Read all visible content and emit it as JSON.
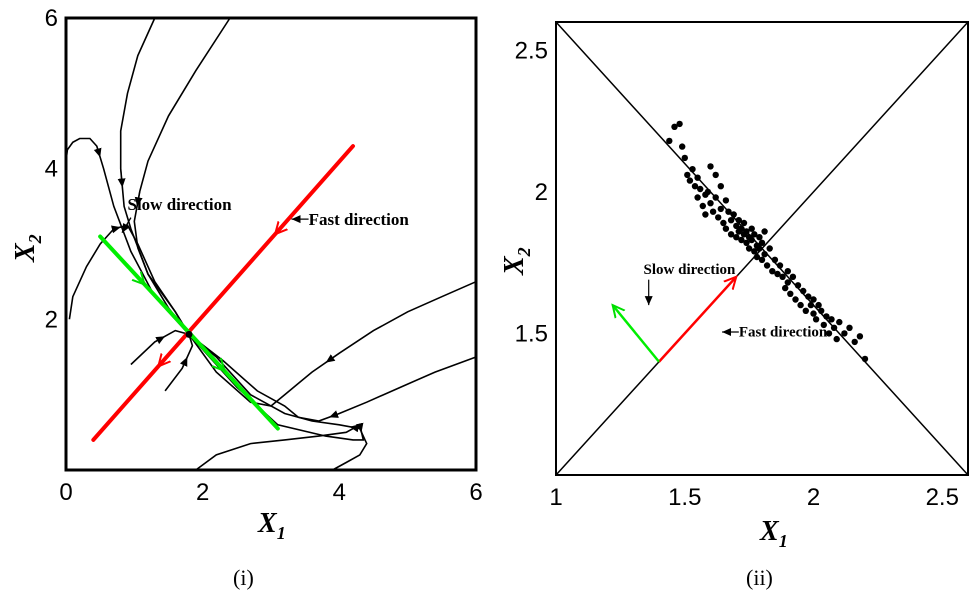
{
  "chart_data": [
    {
      "panel": "(i)",
      "type": "line",
      "caption": "(i)",
      "xlabel": "X",
      "xlabel_sub": "1",
      "ylabel": "X",
      "ylabel_sub": "2",
      "xlim": [
        0,
        6
      ],
      "ylim": [
        0,
        6
      ],
      "xticks": [
        "0",
        "2",
        "4",
        "6"
      ],
      "yticks": [
        "2",
        "4",
        "6"
      ],
      "grid": false,
      "fixed_point": {
        "x": 1.8,
        "y": 1.8
      },
      "series": [
        {
          "color": "#ff0000",
          "x": [
            0.4,
            4.2
          ],
          "y": [
            0.4,
            4.3
          ]
        },
        {
          "color": "#00ee00",
          "x": [
            0.5,
            3.1
          ],
          "y": [
            3.1,
            0.55
          ]
        }
      ],
      "trajectories": [
        {
          "x": [
            1.3,
            1.05,
            0.9,
            0.8,
            0.8,
            0.85,
            0.95,
            1.2,
            1.6,
            1.8
          ],
          "y": [
            6.0,
            5.5,
            5.0,
            4.5,
            4.0,
            3.5,
            3.2,
            2.6,
            2.1,
            1.8
          ]
        },
        {
          "x": [
            2.4,
            1.9,
            1.5,
            1.2,
            1.08,
            1.0,
            1.05,
            1.2,
            1.5,
            1.8
          ],
          "y": [
            6.0,
            5.3,
            4.7,
            4.1,
            3.7,
            3.3,
            2.95,
            2.6,
            2.15,
            1.8
          ]
        },
        {
          "x": [
            0.05,
            0.1,
            0.3,
            0.5,
            0.7,
            0.9,
            1.05,
            1.3,
            1.6,
            1.8
          ],
          "y": [
            2.0,
            2.3,
            2.7,
            3.0,
            3.2,
            3.25,
            3.0,
            2.5,
            2.1,
            1.8
          ]
        },
        {
          "x": [
            0.0,
            0.02,
            0.1,
            0.2,
            0.35,
            0.45,
            0.55,
            0.7,
            0.95,
            1.3,
            1.6,
            1.8
          ],
          "y": [
            4.1,
            4.25,
            4.35,
            4.4,
            4.4,
            4.3,
            4.0,
            3.5,
            2.9,
            2.3,
            2.0,
            1.8
          ]
        },
        {
          "x": [
            1.9,
            2.2,
            2.7,
            3.2,
            3.7,
            4.1,
            4.3,
            4.35,
            4.2,
            3.8,
            3.1,
            2.5,
            2.0,
            1.8
          ],
          "y": [
            0.0,
            0.2,
            0.35,
            0.4,
            0.45,
            0.5,
            0.6,
            0.4,
            0.4,
            0.45,
            0.6,
            1.1,
            1.6,
            1.8
          ]
        },
        {
          "x": [
            3.9,
            4.1,
            4.3,
            4.4,
            4.3,
            4.0,
            3.6,
            3.2,
            2.7,
            2.2,
            1.8
          ],
          "y": [
            0.0,
            0.1,
            0.2,
            0.35,
            0.55,
            0.6,
            0.65,
            0.75,
            1.0,
            1.5,
            1.8
          ]
        },
        {
          "x": [
            6.0,
            5.5,
            5.0,
            4.5,
            4.0,
            3.6,
            3.2,
            3.0,
            2.7,
            2.2,
            1.8
          ],
          "y": [
            2.5,
            2.3,
            2.1,
            1.85,
            1.55,
            1.3,
            1.0,
            0.85,
            0.9,
            1.3,
            1.8
          ]
        },
        {
          "x": [
            6.0,
            5.4,
            4.9,
            4.4,
            4.0,
            3.7,
            3.4,
            3.2,
            2.8,
            2.3,
            1.8
          ],
          "y": [
            1.5,
            1.3,
            1.1,
            0.9,
            0.75,
            0.65,
            0.7,
            0.85,
            1.05,
            1.45,
            1.8
          ]
        },
        {
          "x": [
            0.95,
            1.3,
            1.6,
            1.8
          ],
          "y": [
            1.4,
            1.7,
            1.85,
            1.8
          ]
        },
        {
          "x": [
            1.45,
            1.7,
            1.85,
            1.8
          ],
          "y": [
            1.05,
            1.35,
            1.65,
            1.8
          ]
        }
      ],
      "annotations": [
        {
          "text": "Slow direction",
          "x": 0.9,
          "y": 3.45
        },
        {
          "text": "Fast direction",
          "x": 3.55,
          "y": 3.25
        }
      ]
    },
    {
      "panel": "(ii)",
      "type": "scatter",
      "caption": "(ii)",
      "xlabel": "X",
      "xlabel_sub": "1",
      "ylabel": "X",
      "ylabel_sub": "2",
      "xlim": [
        1,
        2.6
      ],
      "ylim": [
        1,
        2.6
      ],
      "xticks": [
        "1",
        "1.5",
        "2",
        "2.5"
      ],
      "yticks": [
        "1.5",
        "2",
        "2.5"
      ],
      "grid": false,
      "diagonals": [
        {
          "x": [
            1,
            2.6
          ],
          "y": [
            1,
            2.6
          ]
        },
        {
          "x": [
            1,
            2.6
          ],
          "y": [
            2.6,
            1
          ]
        }
      ],
      "points": {
        "x": [
          1.44,
          1.46,
          1.48,
          1.49,
          1.5,
          1.51,
          1.52,
          1.53,
          1.54,
          1.55,
          1.55,
          1.56,
          1.57,
          1.58,
          1.58,
          1.59,
          1.6,
          1.6,
          1.61,
          1.62,
          1.62,
          1.63,
          1.64,
          1.64,
          1.65,
          1.66,
          1.66,
          1.67,
          1.68,
          1.68,
          1.69,
          1.7,
          1.7,
          1.71,
          1.71,
          1.72,
          1.72,
          1.73,
          1.73,
          1.74,
          1.74,
          1.75,
          1.75,
          1.76,
          1.76,
          1.77,
          1.77,
          1.78,
          1.78,
          1.79,
          1.79,
          1.8,
          1.8,
          1.81,
          1.81,
          1.82,
          1.83,
          1.84,
          1.85,
          1.86,
          1.87,
          1.88,
          1.89,
          1.9,
          1.9,
          1.91,
          1.92,
          1.93,
          1.94,
          1.95,
          1.96,
          1.97,
          1.98,
          1.99,
          2.0,
          2.0,
          2.01,
          2.02,
          2.03,
          2.04,
          2.05,
          2.06,
          2.07,
          2.08,
          2.09,
          2.1,
          2.12,
          2.14,
          2.16,
          2.18,
          2.2
        ],
        "y": [
          2.18,
          2.23,
          2.24,
          2.16,
          2.12,
          2.06,
          2.04,
          2.08,
          2.02,
          1.98,
          2.05,
          2.01,
          1.95,
          1.99,
          1.92,
          2.0,
          1.96,
          2.09,
          1.93,
          1.98,
          2.06,
          1.91,
          1.94,
          2.02,
          1.89,
          1.97,
          1.87,
          1.93,
          1.9,
          1.85,
          1.92,
          1.88,
          1.84,
          1.9,
          1.86,
          1.87,
          1.83,
          1.85,
          1.89,
          1.82,
          1.86,
          1.84,
          1.8,
          1.87,
          1.83,
          1.79,
          1.85,
          1.81,
          1.77,
          1.84,
          1.8,
          1.76,
          1.82,
          1.78,
          1.86,
          1.74,
          1.8,
          1.72,
          1.76,
          1.71,
          1.74,
          1.7,
          1.66,
          1.72,
          1.68,
          1.64,
          1.7,
          1.62,
          1.67,
          1.6,
          1.65,
          1.58,
          1.63,
          1.6,
          1.62,
          1.57,
          1.55,
          1.6,
          1.58,
          1.53,
          1.56,
          1.5,
          1.55,
          1.52,
          1.48,
          1.54,
          1.5,
          1.52,
          1.47,
          1.49,
          1.41
        ]
      },
      "series": [
        {
          "color": "#ff0000",
          "x": [
            1.4,
            1.7
          ],
          "y": [
            1.4,
            1.7
          ]
        },
        {
          "color": "#00ee00",
          "x": [
            1.4,
            1.22
          ],
          "y": [
            1.4,
            1.6
          ]
        }
      ],
      "annotations": [
        {
          "text": "Slow direction",
          "x": 1.34,
          "y": 1.71
        },
        {
          "text": "Fast direction",
          "x": 1.71,
          "y": 1.49
        }
      ]
    }
  ]
}
